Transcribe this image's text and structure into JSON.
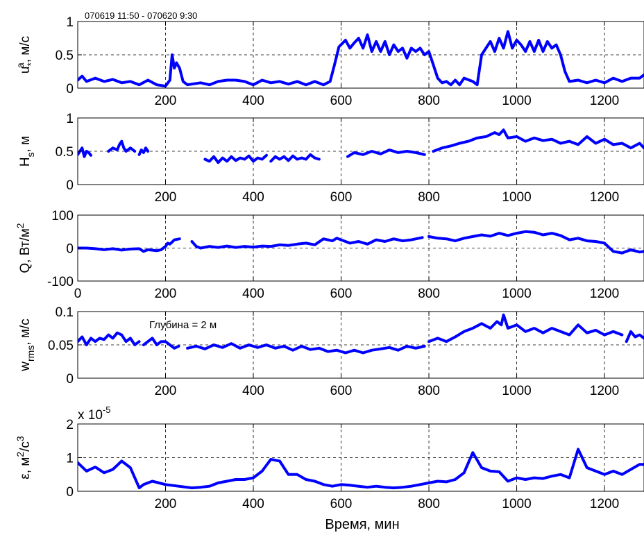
{
  "figure": {
    "header": "070619 11:50 - 070620 9:30",
    "xlabel": "Время, мин",
    "line_color": "#0000ff",
    "grid_color": "#000000"
  },
  "chart_data": [
    {
      "type": "line",
      "ylabel": {
        "main": "u",
        "sup": "a",
        "sub": "*",
        "rest": ", м/с"
      },
      "xlim": [
        0,
        1290
      ],
      "ylim": [
        0,
        1
      ],
      "yticks": [
        "0",
        "0.5",
        "1"
      ],
      "ytick_values": [
        0,
        0.5,
        1
      ],
      "xticks": [
        200,
        400,
        600,
        800,
        1000,
        1200
      ],
      "xtick_labels": [
        "200",
        "400",
        "600",
        "800",
        "1000",
        "1200"
      ],
      "grid": true,
      "series": [
        {
          "x": [
            0,
            10,
            20,
            40,
            60,
            80,
            100,
            120,
            140,
            160,
            180,
            200,
            210,
            215,
            220,
            225,
            232,
            240,
            250,
            260,
            280,
            300,
            320,
            340,
            360,
            380,
            400,
            420,
            440,
            460,
            480,
            500,
            520,
            540,
            560,
            575,
            585,
            595,
            610,
            620,
            630,
            640,
            650,
            660,
            670,
            680,
            690,
            700,
            710,
            720,
            730,
            740,
            750,
            760,
            770,
            780,
            790,
            800,
            810,
            820,
            830,
            840,
            850,
            860,
            870,
            880,
            900,
            910,
            920,
            930,
            940,
            950,
            960,
            970,
            980,
            990,
            1000,
            1010,
            1020,
            1030,
            1040,
            1050,
            1060,
            1070,
            1080,
            1090,
            1100,
            1110,
            1120,
            1140,
            1160,
            1180,
            1200,
            1220,
            1240,
            1260,
            1280,
            1290
          ],
          "y": [
            0.12,
            0.18,
            0.1,
            0.15,
            0.1,
            0.13,
            0.08,
            0.1,
            0.05,
            0.12,
            0.05,
            0.03,
            0.12,
            0.5,
            0.3,
            0.38,
            0.3,
            0.1,
            0.05,
            0.06,
            0.08,
            0.05,
            0.1,
            0.12,
            0.12,
            0.1,
            0.05,
            0.12,
            0.08,
            0.1,
            0.06,
            0.1,
            0.05,
            0.1,
            0.05,
            0.1,
            0.35,
            0.62,
            0.72,
            0.6,
            0.68,
            0.75,
            0.6,
            0.8,
            0.55,
            0.7,
            0.55,
            0.7,
            0.5,
            0.65,
            0.55,
            0.6,
            0.45,
            0.6,
            0.55,
            0.6,
            0.5,
            0.55,
            0.35,
            0.15,
            0.08,
            0.1,
            0.05,
            0.12,
            0.05,
            0.15,
            0.1,
            0.05,
            0.5,
            0.6,
            0.7,
            0.55,
            0.75,
            0.6,
            0.85,
            0.6,
            0.72,
            0.65,
            0.55,
            0.7,
            0.55,
            0.72,
            0.55,
            0.7,
            0.6,
            0.65,
            0.5,
            0.25,
            0.1,
            0.12,
            0.08,
            0.12,
            0.08,
            0.15,
            0.1,
            0.15,
            0.15,
            0.2
          ]
        }
      ]
    },
    {
      "type": "line",
      "ylabel": {
        "main": "H",
        "sup": "",
        "sub": "s",
        "rest": ", м"
      },
      "xlim": [
        0,
        1290
      ],
      "ylim": [
        0,
        1
      ],
      "yticks": [
        "0",
        "0.5",
        "1"
      ],
      "ytick_values": [
        0,
        0.5,
        1
      ],
      "xticks": [
        200,
        400,
        600,
        800,
        1000,
        1200
      ],
      "xtick_labels": [
        "200",
        "400",
        "600",
        "800",
        "1000",
        "1200"
      ],
      "grid": true,
      "series": [
        {
          "x": [
            0,
            5,
            10,
            15,
            20,
            25,
            30
          ],
          "y": [
            0.45,
            0.5,
            0.55,
            0.42,
            0.5,
            0.48,
            0.44
          ]
        },
        {
          "x": [
            70,
            80,
            90,
            95,
            100,
            105,
            110,
            120,
            130
          ],
          "y": [
            0.5,
            0.55,
            0.52,
            0.6,
            0.65,
            0.55,
            0.5,
            0.55,
            0.5
          ]
        },
        {
          "x": [
            140,
            145,
            150,
            155,
            160
          ],
          "y": [
            0.45,
            0.52,
            0.48,
            0.55,
            0.5
          ]
        },
        {
          "x": [
            290,
            300,
            310,
            320,
            330,
            340,
            350,
            360,
            370,
            380,
            390,
            400,
            410,
            420,
            430
          ],
          "y": [
            0.38,
            0.35,
            0.42,
            0.33,
            0.4,
            0.35,
            0.42,
            0.36,
            0.4,
            0.38,
            0.43,
            0.35,
            0.4,
            0.38,
            0.44
          ]
        },
        {
          "x": [
            440,
            450,
            460,
            470,
            480,
            490,
            500,
            510,
            520,
            530,
            540,
            550
          ],
          "y": [
            0.35,
            0.42,
            0.38,
            0.42,
            0.36,
            0.43,
            0.38,
            0.4,
            0.38,
            0.45,
            0.4,
            0.38
          ]
        },
        {
          "x": [
            615,
            630,
            650,
            670,
            690,
            710,
            730,
            750,
            770,
            790
          ],
          "y": [
            0.42,
            0.48,
            0.45,
            0.5,
            0.46,
            0.52,
            0.48,
            0.5,
            0.48,
            0.45
          ]
        },
        {
          "x": [
            810,
            830,
            850,
            870,
            890,
            910,
            930,
            950,
            960,
            970,
            980,
            1000,
            1020,
            1040,
            1060,
            1080,
            1100,
            1120,
            1140,
            1160,
            1180,
            1200,
            1220,
            1240,
            1260,
            1280,
            1290
          ],
          "y": [
            0.5,
            0.55,
            0.58,
            0.62,
            0.65,
            0.7,
            0.72,
            0.78,
            0.75,
            0.82,
            0.7,
            0.72,
            0.65,
            0.7,
            0.66,
            0.68,
            0.62,
            0.65,
            0.6,
            0.72,
            0.62,
            0.68,
            0.6,
            0.62,
            0.55,
            0.62,
            0.55
          ]
        }
      ]
    },
    {
      "type": "line",
      "ylabel": {
        "main": "Q, Вт/м",
        "sup": "2",
        "sub": "",
        "rest": ""
      },
      "xlim": [
        0,
        1290
      ],
      "ylim": [
        -100,
        100
      ],
      "yticks": [
        "-100",
        "0",
        "100"
      ],
      "ytick_values": [
        -100,
        0,
        100
      ],
      "xticks": [
        0,
        200,
        400,
        600,
        800,
        1000,
        1200
      ],
      "xtick_labels": [
        "0",
        "200",
        "400",
        "600",
        "800",
        "1000",
        "1200"
      ],
      "grid": true,
      "series": [
        {
          "x": [
            0,
            20,
            40,
            60,
            80,
            100,
            120,
            140,
            150,
            160,
            180,
            190,
            200,
            205,
            210,
            215,
            220,
            225,
            232
          ],
          "y": [
            0,
            0,
            -2,
            -5,
            -2,
            -6,
            -3,
            -2,
            -10,
            -5,
            -8,
            -5,
            5,
            15,
            12,
            18,
            25,
            26,
            28
          ]
        },
        {
          "x": [
            260,
            270,
            280,
            300,
            320,
            340,
            360,
            380,
            400,
            420,
            440,
            460,
            480,
            500,
            520,
            540,
            560,
            580,
            590,
            600,
            620,
            640,
            660,
            680,
            700,
            720,
            740,
            760,
            785
          ],
          "y": [
            20,
            5,
            0,
            5,
            2,
            6,
            2,
            5,
            3,
            6,
            5,
            10,
            8,
            12,
            15,
            10,
            28,
            22,
            30,
            25,
            15,
            20,
            12,
            25,
            20,
            28,
            22,
            25,
            32
          ]
        },
        {
          "x": [
            800,
            820,
            840,
            860,
            880,
            900,
            920,
            940,
            960,
            980,
            1000,
            1020,
            1040,
            1060,
            1080,
            1100,
            1120,
            1140,
            1160,
            1180,
            1200,
            1220,
            1240,
            1260,
            1280,
            1290
          ],
          "y": [
            35,
            30,
            28,
            22,
            30,
            35,
            40,
            36,
            45,
            38,
            45,
            50,
            48,
            40,
            45,
            38,
            25,
            30,
            22,
            20,
            15,
            -10,
            -15,
            -5,
            -12,
            -10
          ]
        }
      ]
    },
    {
      "type": "line",
      "ylabel": {
        "main": "w",
        "sup": "",
        "sub": "rms",
        "rest": ", м/с"
      },
      "xlim": [
        0,
        1290
      ],
      "ylim": [
        0,
        0.1
      ],
      "yticks": [
        "0",
        "0.05",
        "0.1"
      ],
      "ytick_values": [
        0,
        0.05,
        0.1
      ],
      "xticks": [
        200,
        400,
        600,
        800,
        1000,
        1200
      ],
      "xtick_labels": [
        "200",
        "400",
        "600",
        "800",
        "1000",
        "1200"
      ],
      "grid": true,
      "annotation": "Глубина = 2 м",
      "series": [
        {
          "x": [
            0,
            10,
            20,
            30,
            40,
            50,
            60,
            70,
            80,
            90,
            100,
            110,
            120,
            130,
            140
          ],
          "y": [
            0.055,
            0.062,
            0.05,
            0.06,
            0.055,
            0.06,
            0.058,
            0.065,
            0.06,
            0.068,
            0.065,
            0.055,
            0.06,
            0.05,
            0.055
          ]
        },
        {
          "x": [
            150,
            160,
            170,
            180,
            190,
            200,
            210,
            220,
            230
          ],
          "y": [
            0.05,
            0.055,
            0.06,
            0.05,
            0.055,
            0.055,
            0.05,
            0.045,
            0.048
          ]
        },
        {
          "x": [
            250,
            270,
            290,
            310,
            330,
            350,
            370,
            390,
            410,
            430,
            450,
            470,
            490,
            510,
            530,
            550,
            570,
            590,
            610,
            630,
            650,
            670,
            690,
            710,
            730,
            750,
            770,
            790
          ],
          "y": [
            0.045,
            0.048,
            0.044,
            0.05,
            0.046,
            0.052,
            0.045,
            0.05,
            0.046,
            0.05,
            0.045,
            0.048,
            0.042,
            0.048,
            0.043,
            0.045,
            0.04,
            0.042,
            0.038,
            0.042,
            0.038,
            0.042,
            0.044,
            0.046,
            0.042,
            0.048,
            0.045,
            0.048
          ]
        },
        {
          "x": [
            800,
            820,
            840,
            860,
            880,
            900,
            920,
            940,
            955,
            965,
            970,
            980,
            1000,
            1020,
            1040,
            1060,
            1080,
            1100,
            1120,
            1140,
            1160,
            1180,
            1200,
            1220,
            1240
          ],
          "y": [
            0.055,
            0.06,
            0.055,
            0.062,
            0.07,
            0.075,
            0.082,
            0.075,
            0.085,
            0.08,
            0.095,
            0.075,
            0.08,
            0.07,
            0.075,
            0.068,
            0.075,
            0.07,
            0.065,
            0.08,
            0.068,
            0.072,
            0.065,
            0.07,
            0.065
          ]
        },
        {
          "x": [
            1250,
            1260,
            1270,
            1280,
            1290
          ],
          "y": [
            0.055,
            0.07,
            0.062,
            0.065,
            0.06
          ]
        }
      ]
    },
    {
      "type": "line",
      "ylabel": {
        "main": "ε, м",
        "sup": "2",
        "sub": "",
        "rest": "/с",
        "sup2": "3"
      },
      "exponent": "x 10",
      "exponent_power": "-5",
      "xlim": [
        0,
        1290
      ],
      "ylim": [
        0,
        2
      ],
      "yticks": [
        "0",
        "1",
        "2"
      ],
      "ytick_values": [
        0,
        1,
        2
      ],
      "xticks": [
        200,
        400,
        600,
        800,
        1000,
        1200
      ],
      "xtick_labels": [
        "200",
        "400",
        "600",
        "800",
        "1000",
        "1200"
      ],
      "grid": true,
      "series": [
        {
          "x": [
            0,
            20,
            40,
            60,
            80,
            100,
            120,
            140,
            150,
            170,
            200,
            230,
            260,
            280,
            300,
            320,
            340,
            360,
            380,
            400,
            420,
            440,
            460,
            480,
            500,
            520,
            540,
            560,
            580,
            600,
            620,
            640,
            660,
            680,
            700,
            720,
            740,
            760,
            780,
            800,
            820,
            840,
            860,
            880,
            900,
            920,
            940,
            960,
            980,
            1000,
            1020,
            1040,
            1060,
            1080,
            1100,
            1120,
            1140,
            1160,
            1180,
            1200,
            1220,
            1240,
            1260,
            1280,
            1290
          ],
          "y": [
            0.85,
            0.6,
            0.72,
            0.55,
            0.65,
            0.9,
            0.7,
            0.1,
            0.2,
            0.3,
            0.2,
            0.15,
            0.1,
            0.12,
            0.15,
            0.25,
            0.3,
            0.35,
            0.35,
            0.4,
            0.6,
            0.95,
            0.9,
            0.5,
            0.5,
            0.35,
            0.3,
            0.2,
            0.15,
            0.2,
            0.18,
            0.15,
            0.12,
            0.15,
            0.12,
            0.1,
            0.12,
            0.15,
            0.2,
            0.25,
            0.3,
            0.28,
            0.35,
            0.55,
            1.15,
            0.7,
            0.6,
            0.58,
            0.3,
            0.4,
            0.35,
            0.4,
            0.38,
            0.45,
            0.5,
            0.4,
            1.25,
            0.7,
            0.6,
            0.5,
            0.6,
            0.5,
            0.65,
            0.8,
            0.8
          ]
        }
      ]
    }
  ]
}
